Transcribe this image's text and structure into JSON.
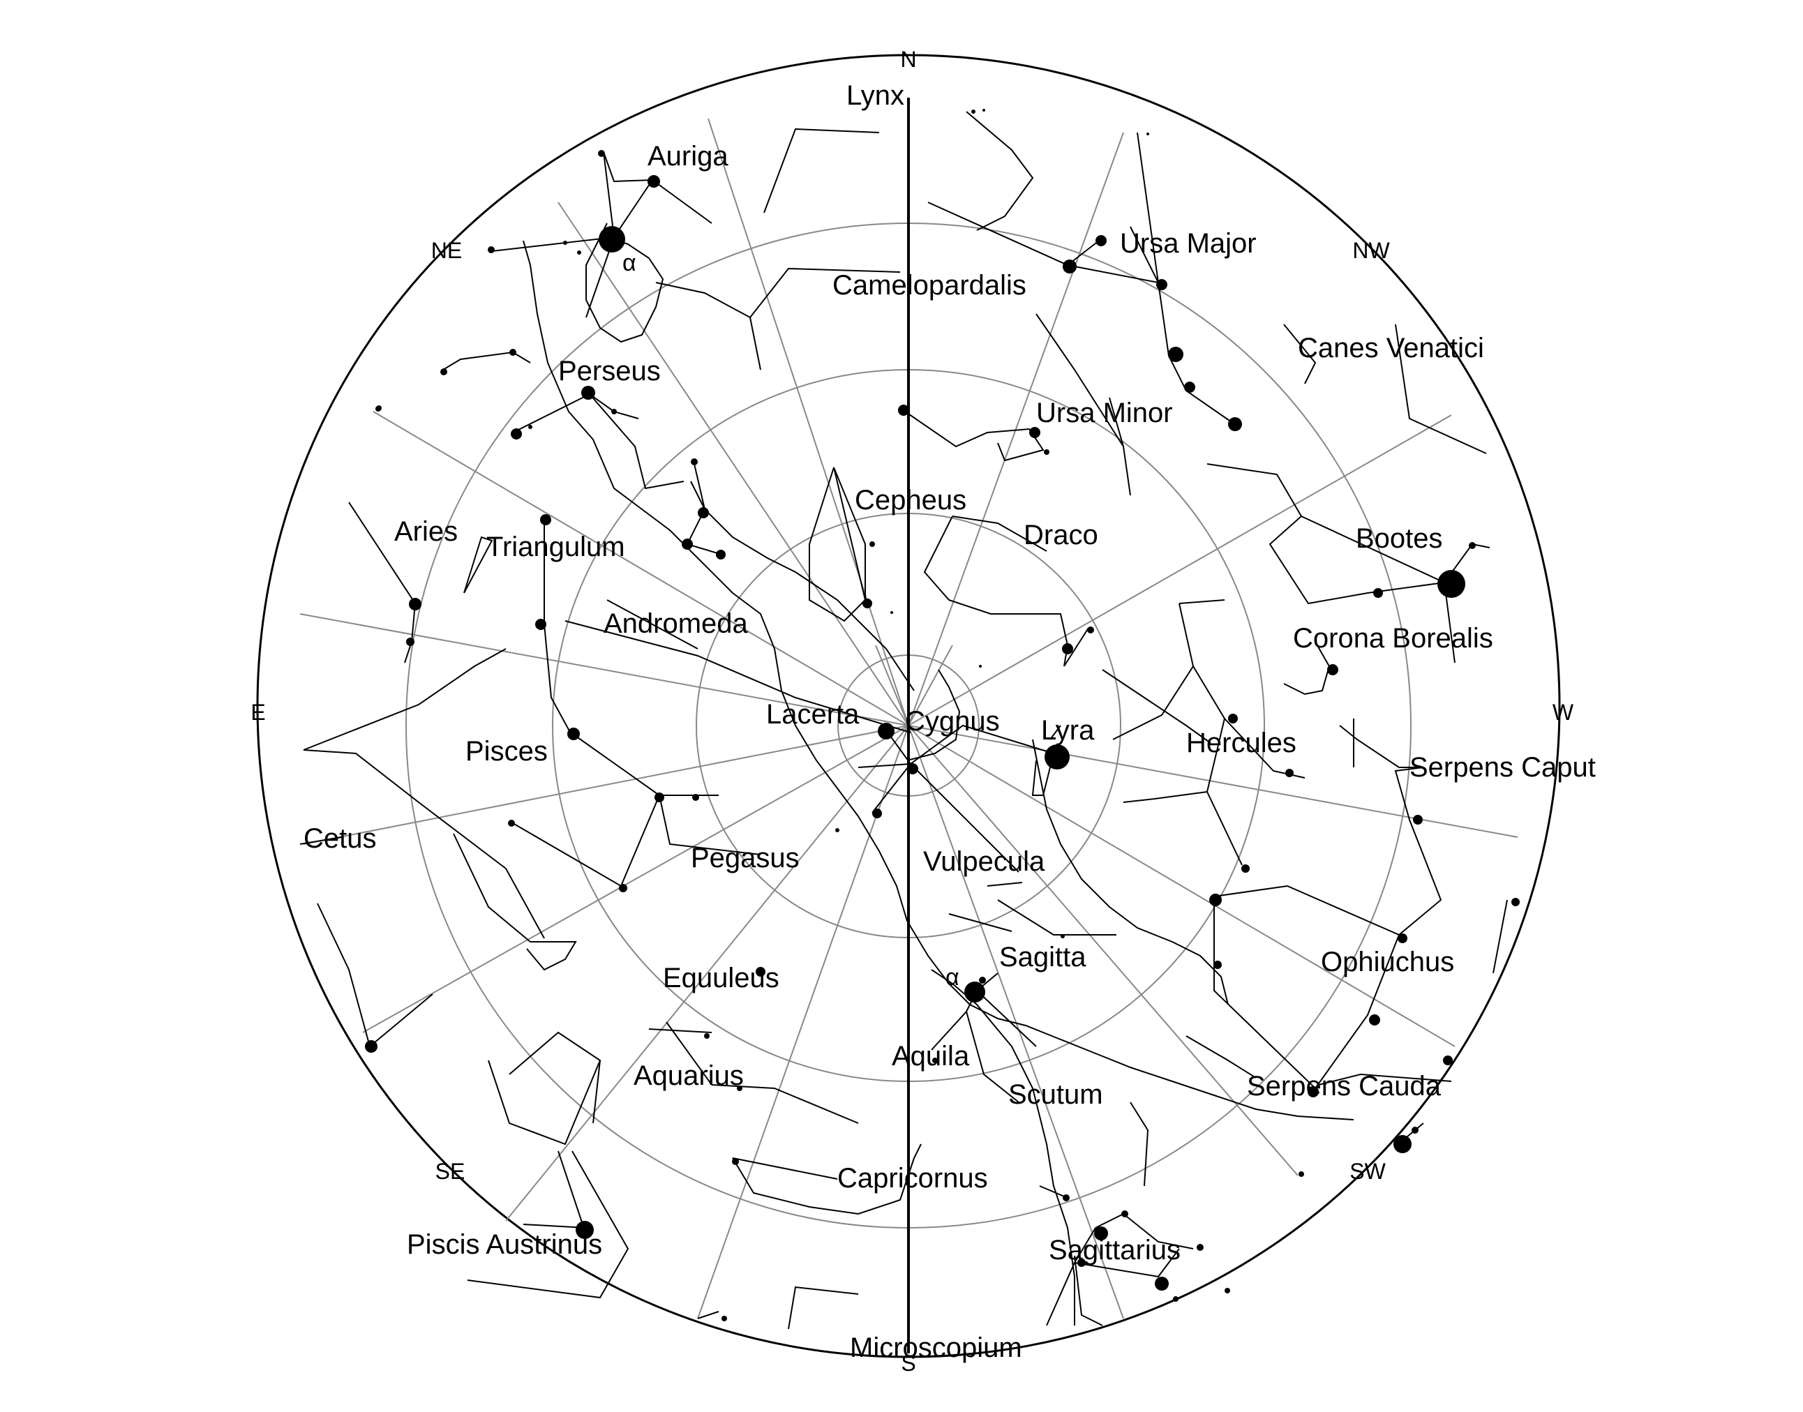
{
  "directions": {
    "n": "N",
    "ne": "NE",
    "e": "E",
    "se": "SE",
    "s": "S",
    "sw": "SW",
    "w": "W",
    "nw": "NW"
  },
  "constellations": {
    "lynx": "Lynx",
    "auriga": "Auriga",
    "perseus": "Perseus",
    "aries": "Aries",
    "triangulum": "Triangulum",
    "andromeda": "Andromeda",
    "lacerta": "Lacerta",
    "pisces": "Pisces",
    "cetus": "Cetus",
    "pegasus": "Pegasus",
    "equuleus": "Equuleus",
    "aquarius": "Aquarius",
    "piscis_austrinus": "Piscis Austrinus",
    "capricornus": "Capricornus",
    "microscopium": "Microscopium",
    "aquila": "Aquila",
    "scutum": "Scutum",
    "sagittarius": "Sagittarius",
    "sagitta": "Sagitta",
    "vulpecula": "Vulpecula",
    "cygnus": "Cygnus",
    "lyra": "Lyra",
    "hercules": "Hercules",
    "serpens_caput": "Serpens Caput",
    "serpens_cauda": "Serpens Cauda",
    "ophiuchus": "Ophiuchus",
    "corona_borealis": "Corona Borealis",
    "bootes": "Bootes",
    "canes_venatici": "Canes Venatici",
    "ursa_major": "Ursa Major",
    "ursa_minor": "Ursa Minor",
    "draco": "Draco",
    "cepheus": "Cepheus",
    "camelopardalis": "Camelopardalis"
  },
  "star_markers": {
    "alpha_auriga": "α",
    "alpha_aquila": "α"
  }
}
